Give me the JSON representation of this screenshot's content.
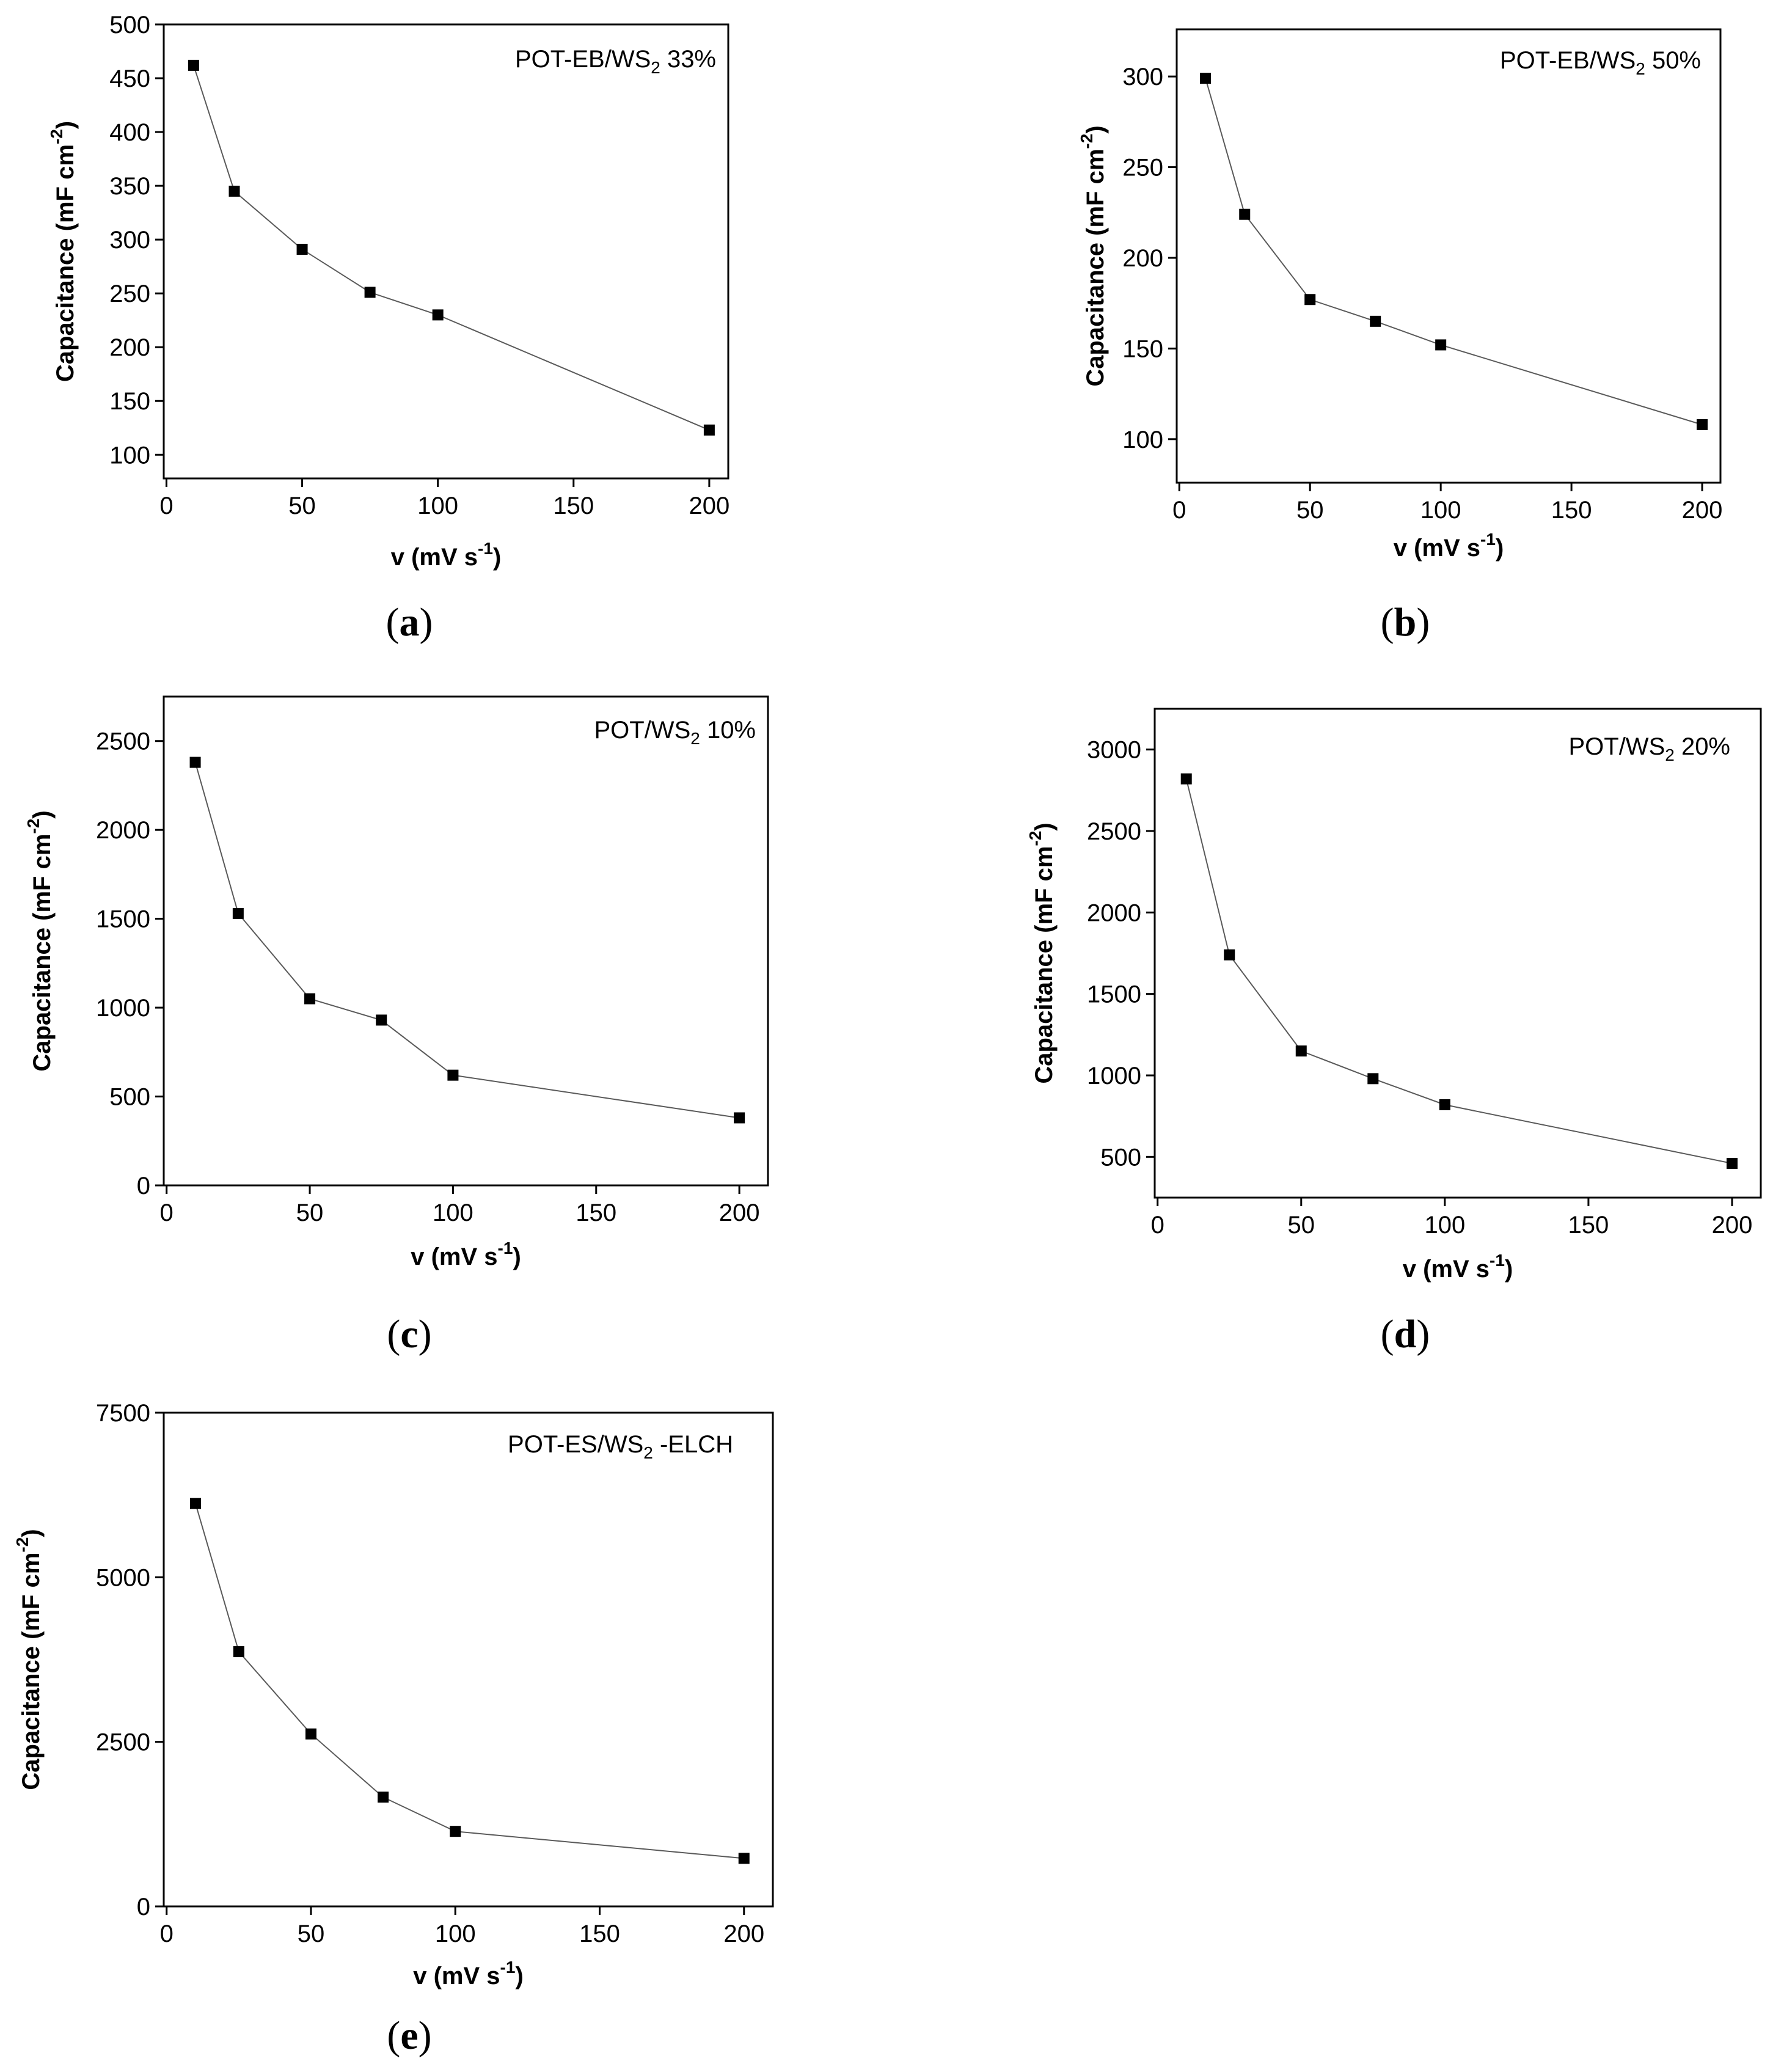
{
  "chart_data": [
    {
      "panel": "a",
      "type": "line",
      "title": "",
      "annotation": {
        "main": "POT-EB/WS",
        "sub": "2",
        "after": " 33%"
      },
      "xlabel": {
        "main": "v (mV s",
        "sup": "-1",
        "after": ")"
      },
      "ylabel": {
        "main": "Capacitance (mF cm",
        "sup": "-2",
        "after": ")"
      },
      "xlim": [
        -1,
        207
      ],
      "ylim": [
        78,
        500
      ],
      "xticks": [
        0,
        50,
        100,
        150,
        200
      ],
      "xtick_labels": [
        "0",
        "50",
        "100",
        "150",
        "200"
      ],
      "yticks": [
        100,
        150,
        200,
        250,
        300,
        350,
        400,
        450,
        500
      ],
      "ytick_labels": [
        "100",
        "150",
        "200",
        "250",
        "300",
        "350",
        "400",
        "450",
        "500"
      ],
      "x": [
        10,
        25,
        50,
        75,
        100,
        200
      ],
      "values": [
        462,
        345,
        291,
        251,
        230,
        123
      ]
    },
    {
      "panel": "b",
      "type": "line",
      "title": "",
      "annotation": {
        "main": "POT-EB/WS",
        "sub": "2",
        "after": " 50%"
      },
      "xlabel": {
        "main": "v (mV s",
        "sup": "-1",
        "after": ")"
      },
      "ylabel": {
        "main": "Capacitance (mF cm",
        "sup": "-2",
        "after": ")"
      },
      "xlim": [
        -1,
        207
      ],
      "ylim": [
        76,
        326
      ],
      "xticks": [
        0,
        50,
        100,
        150,
        200
      ],
      "xtick_labels": [
        "0",
        "50",
        "100",
        "150",
        "200"
      ],
      "yticks": [
        100,
        150,
        200,
        250,
        300
      ],
      "ytick_labels": [
        "100",
        "150",
        "200",
        "250",
        "300"
      ],
      "x": [
        10,
        25,
        50,
        75,
        100,
        200
      ],
      "values": [
        299,
        224,
        177,
        165,
        152,
        108
      ]
    },
    {
      "panel": "c",
      "type": "line",
      "title": "",
      "annotation": {
        "main": "POT/WS",
        "sub": "2",
        "after": " 10%"
      },
      "xlabel": {
        "main": "v (mV s",
        "sup": "-1",
        "after": ")"
      },
      "ylabel": {
        "main": "Capacitance (mF cm",
        "sup": "-2",
        "after": ")"
      },
      "xlim": [
        -1,
        210
      ],
      "ylim": [
        0,
        2750
      ],
      "xticks": [
        0,
        50,
        100,
        150,
        200
      ],
      "xtick_labels": [
        "0",
        "50",
        "100",
        "150",
        "200"
      ],
      "yticks": [
        0,
        500,
        1000,
        1500,
        2000,
        2500
      ],
      "ytick_labels": [
        "0",
        "500",
        "1000",
        "1500",
        "2000",
        "2500"
      ],
      "x": [
        10,
        25,
        50,
        75,
        100,
        200
      ],
      "values": [
        2380,
        1530,
        1050,
        930,
        620,
        380
      ]
    },
    {
      "panel": "d",
      "type": "line",
      "title": "",
      "annotation": {
        "main": "POT/WS",
        "sub": "2",
        "after": " 20%"
      },
      "xlabel": {
        "main": "v (mV s",
        "sup": "-1",
        "after": ")"
      },
      "ylabel": {
        "main": "Capacitance (mF cm",
        "sup": "-2",
        "after": ")"
      },
      "xlim": [
        -1,
        210
      ],
      "ylim": [
        250,
        3250
      ],
      "xticks": [
        0,
        50,
        100,
        150,
        200
      ],
      "xtick_labels": [
        "0",
        "50",
        "100",
        "150",
        "200"
      ],
      "yticks": [
        500,
        1000,
        1500,
        2000,
        2500,
        3000
      ],
      "ytick_labels": [
        "500",
        "1000",
        "1500",
        "2000",
        "2500",
        "3000"
      ],
      "x": [
        10,
        25,
        50,
        75,
        100,
        200
      ],
      "values": [
        2820,
        1740,
        1150,
        980,
        820,
        460
      ]
    },
    {
      "panel": "e",
      "type": "line",
      "title": "",
      "annotation": {
        "main": "POT-ES/WS",
        "sub": "2",
        "after": " -ELCH"
      },
      "xlabel": {
        "main": "v (mV s",
        "sup": "-1",
        "after": ")"
      },
      "ylabel": {
        "main": "Capacitance (mF cm",
        "sup": "-2",
        "after": ")"
      },
      "xlim": [
        -1,
        210
      ],
      "ylim": [
        0,
        7500
      ],
      "xticks": [
        0,
        50,
        100,
        150,
        200
      ],
      "xtick_labels": [
        "0",
        "50",
        "100",
        "150",
        "200"
      ],
      "yticks": [
        0,
        2500,
        5000,
        7500
      ],
      "ytick_labels": [
        "0",
        "2500",
        "5000",
        "7500"
      ],
      "x": [
        10,
        25,
        50,
        75,
        100,
        200
      ],
      "values": [
        6120,
        3870,
        2620,
        1660,
        1140,
        730
      ]
    }
  ],
  "panel_labels": [
    {
      "open": "(",
      "letter": "a",
      "close": ")"
    },
    {
      "open": "(",
      "letter": "b",
      "close": ")"
    },
    {
      "open": "(",
      "letter": "c",
      "close": ")"
    },
    {
      "open": "(",
      "letter": "d",
      "close": ")"
    },
    {
      "open": "(",
      "letter": "e",
      "close": ")"
    }
  ]
}
